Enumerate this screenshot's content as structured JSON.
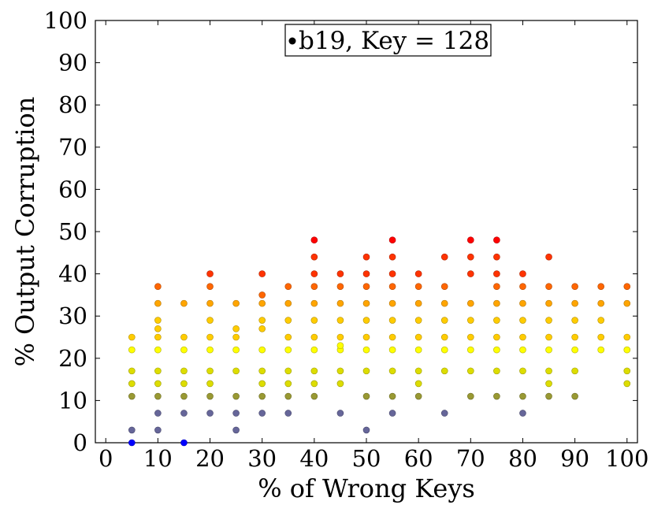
{
  "chart_data": {
    "type": "scatter",
    "title": "b19, Key = 128",
    "xlabel": "% of Wrong Keys",
    "ylabel": "% Output Corruption",
    "xlim": [
      -2,
      102
    ],
    "ylim": [
      0,
      100
    ],
    "xticks": [
      0,
      10,
      20,
      30,
      40,
      50,
      60,
      70,
      80,
      90,
      100
    ],
    "yticks": [
      0,
      10,
      20,
      30,
      40,
      50,
      60,
      70,
      80,
      90,
      100
    ],
    "grid": false,
    "legend_position": "top-center",
    "legend_marker_color": "#000000",
    "colormap": [
      "#0000ff",
      "#666699",
      "#999933",
      "#dddd00",
      "#ffff00",
      "#ffcc00",
      "#ffa500",
      "#ff6600",
      "#ff3300",
      "#ff0000"
    ],
    "color_range": [
      0,
      48
    ],
    "points": [
      {
        "x": 5,
        "y": 0
      },
      {
        "x": 5,
        "y": 3
      },
      {
        "x": 5,
        "y": 11
      },
      {
        "x": 5,
        "y": 14
      },
      {
        "x": 5,
        "y": 17
      },
      {
        "x": 5,
        "y": 22
      },
      {
        "x": 5,
        "y": 25
      },
      {
        "x": 10,
        "y": 3
      },
      {
        "x": 10,
        "y": 7
      },
      {
        "x": 10,
        "y": 11
      },
      {
        "x": 10,
        "y": 14
      },
      {
        "x": 10,
        "y": 17
      },
      {
        "x": 10,
        "y": 22
      },
      {
        "x": 10,
        "y": 25
      },
      {
        "x": 10,
        "y": 27
      },
      {
        "x": 10,
        "y": 29
      },
      {
        "x": 10,
        "y": 33
      },
      {
        "x": 10,
        "y": 37
      },
      {
        "x": 15,
        "y": 0
      },
      {
        "x": 15,
        "y": 7
      },
      {
        "x": 15,
        "y": 11
      },
      {
        "x": 15,
        "y": 14
      },
      {
        "x": 15,
        "y": 17
      },
      {
        "x": 15,
        "y": 22
      },
      {
        "x": 15,
        "y": 25
      },
      {
        "x": 15,
        "y": 33
      },
      {
        "x": 20,
        "y": 7
      },
      {
        "x": 20,
        "y": 11
      },
      {
        "x": 20,
        "y": 14
      },
      {
        "x": 20,
        "y": 17
      },
      {
        "x": 20,
        "y": 22
      },
      {
        "x": 20,
        "y": 25
      },
      {
        "x": 20,
        "y": 29
      },
      {
        "x": 20,
        "y": 33
      },
      {
        "x": 20,
        "y": 37
      },
      {
        "x": 20,
        "y": 40
      },
      {
        "x": 25,
        "y": 3
      },
      {
        "x": 25,
        "y": 7
      },
      {
        "x": 25,
        "y": 11
      },
      {
        "x": 25,
        "y": 17
      },
      {
        "x": 25,
        "y": 22
      },
      {
        "x": 25,
        "y": 25
      },
      {
        "x": 25,
        "y": 27
      },
      {
        "x": 25,
        "y": 33
      },
      {
        "x": 30,
        "y": 7
      },
      {
        "x": 30,
        "y": 11
      },
      {
        "x": 30,
        "y": 14
      },
      {
        "x": 30,
        "y": 17
      },
      {
        "x": 30,
        "y": 22
      },
      {
        "x": 30,
        "y": 27
      },
      {
        "x": 30,
        "y": 29
      },
      {
        "x": 30,
        "y": 33
      },
      {
        "x": 30,
        "y": 35
      },
      {
        "x": 30,
        "y": 40
      },
      {
        "x": 35,
        "y": 7
      },
      {
        "x": 35,
        "y": 11
      },
      {
        "x": 35,
        "y": 14
      },
      {
        "x": 35,
        "y": 17
      },
      {
        "x": 35,
        "y": 22
      },
      {
        "x": 35,
        "y": 25
      },
      {
        "x": 35,
        "y": 29
      },
      {
        "x": 35,
        "y": 33
      },
      {
        "x": 35,
        "y": 37
      },
      {
        "x": 40,
        "y": 11
      },
      {
        "x": 40,
        "y": 14
      },
      {
        "x": 40,
        "y": 17
      },
      {
        "x": 40,
        "y": 22
      },
      {
        "x": 40,
        "y": 25
      },
      {
        "x": 40,
        "y": 29
      },
      {
        "x": 40,
        "y": 33
      },
      {
        "x": 40,
        "y": 37
      },
      {
        "x": 40,
        "y": 40
      },
      {
        "x": 40,
        "y": 44
      },
      {
        "x": 40,
        "y": 48
      },
      {
        "x": 45,
        "y": 7
      },
      {
        "x": 45,
        "y": 14
      },
      {
        "x": 45,
        "y": 17
      },
      {
        "x": 45,
        "y": 22
      },
      {
        "x": 45,
        "y": 23
      },
      {
        "x": 45,
        "y": 25
      },
      {
        "x": 45,
        "y": 29
      },
      {
        "x": 45,
        "y": 33
      },
      {
        "x": 45,
        "y": 37
      },
      {
        "x": 45,
        "y": 40
      },
      {
        "x": 50,
        "y": 3
      },
      {
        "x": 50,
        "y": 11
      },
      {
        "x": 50,
        "y": 17
      },
      {
        "x": 50,
        "y": 22
      },
      {
        "x": 50,
        "y": 25
      },
      {
        "x": 50,
        "y": 29
      },
      {
        "x": 50,
        "y": 33
      },
      {
        "x": 50,
        "y": 37
      },
      {
        "x": 50,
        "y": 40
      },
      {
        "x": 50,
        "y": 44
      },
      {
        "x": 55,
        "y": 7
      },
      {
        "x": 55,
        "y": 11
      },
      {
        "x": 55,
        "y": 17
      },
      {
        "x": 55,
        "y": 22
      },
      {
        "x": 55,
        "y": 25
      },
      {
        "x": 55,
        "y": 29
      },
      {
        "x": 55,
        "y": 33
      },
      {
        "x": 55,
        "y": 37
      },
      {
        "x": 55,
        "y": 40
      },
      {
        "x": 55,
        "y": 44
      },
      {
        "x": 55,
        "y": 48
      },
      {
        "x": 60,
        "y": 11
      },
      {
        "x": 60,
        "y": 14
      },
      {
        "x": 60,
        "y": 17
      },
      {
        "x": 60,
        "y": 22
      },
      {
        "x": 60,
        "y": 25
      },
      {
        "x": 60,
        "y": 29
      },
      {
        "x": 60,
        "y": 33
      },
      {
        "x": 60,
        "y": 37
      },
      {
        "x": 60,
        "y": 40
      },
      {
        "x": 65,
        "y": 7
      },
      {
        "x": 65,
        "y": 17
      },
      {
        "x": 65,
        "y": 22
      },
      {
        "x": 65,
        "y": 25
      },
      {
        "x": 65,
        "y": 29
      },
      {
        "x": 65,
        "y": 33
      },
      {
        "x": 65,
        "y": 37
      },
      {
        "x": 65,
        "y": 44
      },
      {
        "x": 70,
        "y": 11
      },
      {
        "x": 70,
        "y": 17
      },
      {
        "x": 70,
        "y": 22
      },
      {
        "x": 70,
        "y": 25
      },
      {
        "x": 70,
        "y": 29
      },
      {
        "x": 70,
        "y": 33
      },
      {
        "x": 70,
        "y": 40
      },
      {
        "x": 70,
        "y": 44
      },
      {
        "x": 70,
        "y": 48
      },
      {
        "x": 75,
        "y": 11
      },
      {
        "x": 75,
        "y": 17
      },
      {
        "x": 75,
        "y": 22
      },
      {
        "x": 75,
        "y": 25
      },
      {
        "x": 75,
        "y": 29
      },
      {
        "x": 75,
        "y": 33
      },
      {
        "x": 75,
        "y": 37
      },
      {
        "x": 75,
        "y": 40
      },
      {
        "x": 75,
        "y": 44
      },
      {
        "x": 75,
        "y": 48
      },
      {
        "x": 80,
        "y": 7
      },
      {
        "x": 80,
        "y": 11
      },
      {
        "x": 80,
        "y": 17
      },
      {
        "x": 80,
        "y": 22
      },
      {
        "x": 80,
        "y": 25
      },
      {
        "x": 80,
        "y": 29
      },
      {
        "x": 80,
        "y": 33
      },
      {
        "x": 80,
        "y": 37
      },
      {
        "x": 80,
        "y": 40
      },
      {
        "x": 85,
        "y": 11
      },
      {
        "x": 85,
        "y": 14
      },
      {
        "x": 85,
        "y": 17
      },
      {
        "x": 85,
        "y": 22
      },
      {
        "x": 85,
        "y": 25
      },
      {
        "x": 85,
        "y": 29
      },
      {
        "x": 85,
        "y": 33
      },
      {
        "x": 85,
        "y": 37
      },
      {
        "x": 85,
        "y": 44
      },
      {
        "x": 90,
        "y": 11
      },
      {
        "x": 90,
        "y": 17
      },
      {
        "x": 90,
        "y": 22
      },
      {
        "x": 90,
        "y": 25
      },
      {
        "x": 90,
        "y": 29
      },
      {
        "x": 90,
        "y": 33
      },
      {
        "x": 90,
        "y": 37
      },
      {
        "x": 95,
        "y": 22
      },
      {
        "x": 95,
        "y": 25
      },
      {
        "x": 95,
        "y": 29
      },
      {
        "x": 95,
        "y": 33
      },
      {
        "x": 95,
        "y": 37
      },
      {
        "x": 100,
        "y": 14
      },
      {
        "x": 100,
        "y": 17
      },
      {
        "x": 100,
        "y": 22
      },
      {
        "x": 100,
        "y": 25
      },
      {
        "x": 100,
        "y": 33
      },
      {
        "x": 100,
        "y": 37
      }
    ]
  }
}
